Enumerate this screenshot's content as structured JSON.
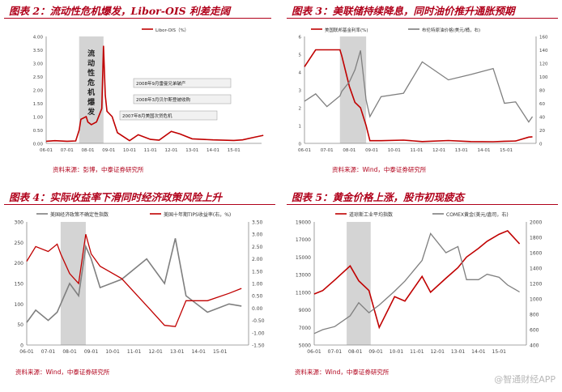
{
  "watermark": "@智通财经APP",
  "charts": [
    {
      "title": "图表 2：流动性危机爆发，Libor-OIS 利差走阔",
      "source": "资料来源：彭博，中泰证券研究所",
      "legend": [
        "Libor-OIS（%）"
      ],
      "crisis_label": "流动性危机爆发",
      "annotations": [
        "2008年9月雷曼兄弟破产",
        "2008年3月贝尔斯登被收购",
        "2007年8月美国次贷危机"
      ],
      "left_ticks": [
        "0.00",
        "0.50",
        "1.00",
        "1.50",
        "2.00",
        "2.50",
        "3.00",
        "3.50",
        "4.00"
      ],
      "x_ticks": [
        "06-01",
        "07-01",
        "08-01",
        "09-01",
        "10-01",
        "11-01",
        "12-01",
        "13-01",
        "14-01",
        "15-01"
      ]
    },
    {
      "title": "图表 3：美联储持续降息，同时油价推升通胀预期",
      "source": "资料来源：Wind，中泰证券研究所",
      "legend": [
        "美国联邦基金利率(%)",
        "布伦特原油价格(美元/桶，右)"
      ],
      "left_ticks": [
        "0",
        "1",
        "2",
        "3",
        "4",
        "5",
        "6"
      ],
      "right_ticks": [
        "0",
        "20",
        "40",
        "60",
        "80",
        "100",
        "120",
        "140",
        "160"
      ],
      "x_ticks": [
        "06-01",
        "07-01",
        "08-01",
        "09-01",
        "10-01",
        "11-01",
        "12-01",
        "13-01",
        "14-01",
        "15-01"
      ]
    },
    {
      "title": "图表 4：实际收益率下滑同时经济政策风险上升",
      "source": "资料来源：Wind，中泰证券研究所",
      "legend": [
        "美国经济政策不确定性指数",
        "美国十年期TIPS收益率(右，%)"
      ],
      "left_ticks": [
        "0",
        "50",
        "100",
        "150",
        "200",
        "250",
        "300"
      ],
      "right_ticks": [
        "-1.50",
        "-1.00",
        "-0.50",
        "0.00",
        "0.50",
        "1.00",
        "1.50",
        "2.00",
        "2.50",
        "3.00",
        "3.50"
      ],
      "x_ticks": [
        "06-01",
        "07-01",
        "08-01",
        "09-01",
        "10-01",
        "11-01",
        "12-01",
        "13-01",
        "14-01",
        "15-01"
      ]
    },
    {
      "title": "图表 5：黄金价格上涨，股市初现疲态",
      "source": "资料来源：Wind，中泰证券研究所",
      "legend": [
        "道琼斯工业平均指数",
        "COMEX黄金(美元/盎司，右)"
      ],
      "left_ticks": [
        "5000",
        "7000",
        "9000",
        "11000",
        "13000",
        "15000",
        "17000",
        "19000"
      ],
      "right_ticks": [
        "400",
        "600",
        "800",
        "1000",
        "1200",
        "1400",
        "1600",
        "1800",
        "2000"
      ],
      "x_ticks": [
        "06-01",
        "07-01",
        "08-01",
        "09-01",
        "10-01",
        "11-01",
        "12-01",
        "13-01",
        "14-01",
        "15-01"
      ]
    }
  ],
  "chart_data": [
    {
      "type": "line",
      "x": [
        "2006-01",
        "2006-06",
        "2007-01",
        "2007-06",
        "2007-08",
        "2007-09",
        "2007-12",
        "2008-01",
        "2008-03",
        "2008-06",
        "2008-09",
        "2008-10",
        "2008-11",
        "2008-12",
        "2009-03",
        "2009-06",
        "2010-01",
        "2010-06",
        "2011-01",
        "2011-06",
        "2012-01",
        "2012-06",
        "2013-01",
        "2014-01",
        "2015-01",
        "2015-06",
        "2016-01",
        "2016-06"
      ],
      "series": [
        {
          "name": "Libor-OIS（%）",
          "values": [
            0.08,
            0.1,
            0.08,
            0.09,
            0.5,
            0.9,
            1.0,
            0.8,
            0.7,
            0.8,
            1.3,
            3.65,
            1.8,
            1.2,
            1.0,
            0.4,
            0.1,
            0.32,
            0.15,
            0.12,
            0.45,
            0.35,
            0.17,
            0.13,
            0.11,
            0.13,
            0.23,
            0.3
          ]
        }
      ],
      "ylim": [
        0,
        4
      ]
    },
    {
      "type": "line",
      "x": [
        "2006-01",
        "2006-07",
        "2007-01",
        "2007-08",
        "2007-09",
        "2008-01",
        "2008-04",
        "2008-07",
        "2008-10",
        "2008-12",
        "2009-06",
        "2010-06",
        "2011-04",
        "2012-06",
        "2013-06",
        "2014-06",
        "2014-12",
        "2015-06",
        "2016-01",
        "2016-03"
      ],
      "series": [
        {
          "name": "美国联邦基金利率(%)",
          "values": [
            4.3,
            5.25,
            5.25,
            5.25,
            4.9,
            3.2,
            2.3,
            2.0,
            1.0,
            0.15,
            0.15,
            0.18,
            0.1,
            0.16,
            0.1,
            0.09,
            0.12,
            0.13,
            0.35,
            0.37
          ]
        },
        {
          "name": "布伦特原油价格(美元/桶，右)",
          "values": [
            63,
            74,
            55,
            71,
            78,
            92,
            110,
            139,
            65,
            40,
            70,
            75,
            122,
            95,
            103,
            112,
            60,
            62,
            32,
            40
          ]
        }
      ],
      "ylim": [
        0,
        6
      ],
      "y2lim": [
        0,
        160
      ]
    },
    {
      "type": "line",
      "x": [
        "2006-01",
        "2006-06",
        "2007-01",
        "2007-06",
        "2007-08",
        "2008-01",
        "2008-06",
        "2008-10",
        "2009-01",
        "2009-06",
        "2010-06",
        "2011-08",
        "2012-06",
        "2012-12",
        "2013-06",
        "2014-06",
        "2015-06",
        "2016-01"
      ],
      "series": [
        {
          "name": "美国经济政策不确定性指数",
          "values": [
            55,
            85,
            60,
            80,
            100,
            150,
            120,
            240,
            210,
            140,
            160,
            210,
            150,
            260,
            120,
            80,
            100,
            95
          ]
        },
        {
          "name": "美国十年期TIPS收益率(右，%)",
          "values": [
            1.9,
            2.5,
            2.3,
            2.6,
            2.2,
            1.4,
            1.0,
            3.0,
            2.2,
            1.7,
            1.2,
            0.1,
            -0.7,
            -0.75,
            0.3,
            0.3,
            0.6,
            0.8
          ]
        }
      ],
      "ylim": [
        0,
        300
      ],
      "y2lim": [
        -1.5,
        3.5
      ]
    },
    {
      "type": "line",
      "x": [
        "2006-01",
        "2006-06",
        "2007-01",
        "2007-10",
        "2008-03",
        "2008-09",
        "2009-03",
        "2009-12",
        "2010-06",
        "2011-04",
        "2011-09",
        "2012-06",
        "2013-01",
        "2013-06",
        "2014-01",
        "2014-06",
        "2015-01",
        "2015-06",
        "2016-01"
      ],
      "series": [
        {
          "name": "道琼斯工业平均指数",
          "values": [
            10800,
            11200,
            12400,
            14000,
            12300,
            11200,
            7000,
            10500,
            10000,
            12800,
            11000,
            12600,
            13800,
            15000,
            16000,
            16800,
            17600,
            18000,
            16500
          ]
        },
        {
          "name": "COMEX黄金(美元/盎司，右)",
          "values": [
            550,
            600,
            640,
            780,
            950,
            820,
            920,
            1100,
            1230,
            1500,
            1850,
            1600,
            1680,
            1250,
            1250,
            1320,
            1280,
            1180,
            1090
          ]
        }
      ],
      "ylim": [
        5000,
        19000
      ],
      "y2lim": [
        400,
        2000
      ]
    }
  ]
}
